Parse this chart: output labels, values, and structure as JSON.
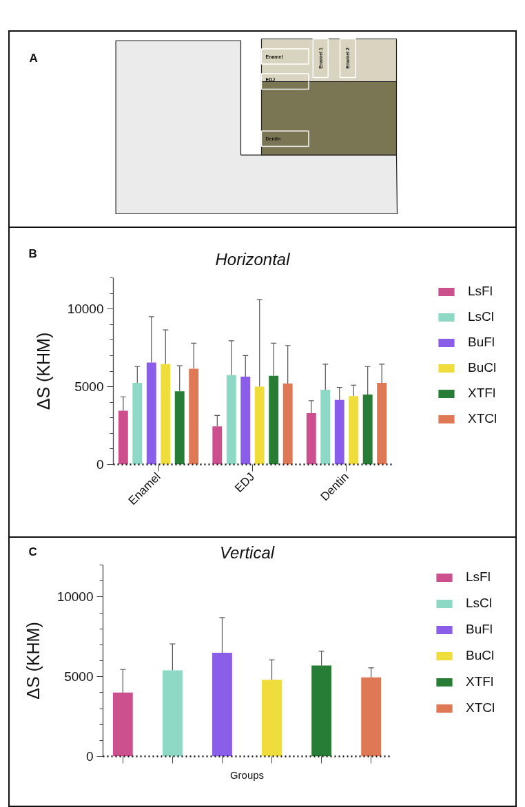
{
  "chart_data": [
    {
      "type": "other",
      "annotations": [
        "A",
        "Enamel",
        "EDJ",
        "Dentin",
        "Enamel 1",
        "Enamel 2"
      ]
    },
    {
      "type": "bar",
      "title": "Horizontal",
      "ylabel": "ΔS (KHM)",
      "annotations": [
        "B"
      ],
      "categories": [
        "Enamel",
        "EDJ",
        "Dentin"
      ],
      "series": [
        {
          "name": "LsFl",
          "color": "#cc4f8e",
          "values": [
            3450,
            2450,
            3300
          ],
          "errors": [
            [
              3450,
              4350
            ],
            [
              2450,
              3150
            ],
            [
              3300,
              4100
            ]
          ]
        },
        {
          "name": "LsCl",
          "color": "#8ed8c6",
          "values": [
            5250,
            5750,
            4800
          ],
          "errors": [
            [
              5250,
              6300
            ],
            [
              5750,
              7950
            ],
            [
              4800,
              6450
            ]
          ]
        },
        {
          "name": "BuFl",
          "color": "#8a5ee8",
          "values": [
            6550,
            5650,
            4150
          ],
          "errors": [
            [
              6550,
              9500
            ],
            [
              5650,
              7000
            ],
            [
              4150,
              4950
            ]
          ]
        },
        {
          "name": "BuCl",
          "color": "#efdd3c",
          "values": [
            6450,
            5000,
            4400
          ],
          "errors": [
            [
              6450,
              8650
            ],
            [
              5000,
              10600
            ],
            [
              4400,
              5100
            ]
          ]
        },
        {
          "name": "XTFl",
          "color": "#277d35",
          "values": [
            4700,
            5700,
            4500
          ],
          "errors": [
            [
              4700,
              6350
            ],
            [
              5700,
              7800
            ],
            [
              4500,
              6300
            ]
          ]
        },
        {
          "name": "XTCl",
          "color": "#df7855",
          "values": [
            6150,
            5200,
            5250
          ],
          "errors": [
            [
              6150,
              7800
            ],
            [
              5200,
              7650
            ],
            [
              5250,
              6450
            ]
          ]
        }
      ],
      "ylim": [
        0,
        12000
      ],
      "yticks": [
        0,
        {
          "value": 1000,
          "label": null
        },
        {
          "value": 2000,
          "label": null
        },
        {
          "value": 3000,
          "label": null
        },
        {
          "value": 4000,
          "label": null
        },
        5000,
        {
          "value": 6000,
          "label": null
        },
        {
          "value": 7000,
          "label": null
        },
        {
          "value": 8000,
          "label": null
        },
        {
          "value": 9000,
          "label": null
        },
        10000,
        {
          "value": 11000,
          "label": null
        },
        {
          "value": 12000,
          "label": null
        }
      ],
      "legend": "right"
    },
    {
      "type": "bar",
      "title": "Vertical",
      "xlabel": "Groups",
      "ylabel": "ΔS (KHM)",
      "annotations": [
        "C"
      ],
      "categories": [
        null,
        null,
        null,
        null,
        null,
        null
      ],
      "stacked": true,
      "series": [
        {
          "name": "LsFl",
          "color": "#cc4f8e",
          "values": [
            4000,
            null,
            null,
            null,
            null,
            null
          ],
          "errors": [
            [
              4000,
              5450
            ],
            null,
            null,
            null,
            null,
            null
          ]
        },
        {
          "name": "LsCl",
          "color": "#8ed8c6",
          "values": [
            null,
            5400,
            null,
            null,
            null,
            null
          ],
          "errors": [
            null,
            [
              5400,
              7050
            ],
            null,
            null,
            null,
            null
          ]
        },
        {
          "name": "BuFl",
          "color": "#8a5ee8",
          "values": [
            null,
            null,
            6500,
            null,
            null,
            null
          ],
          "errors": [
            null,
            null,
            [
              6500,
              8700
            ],
            null,
            null,
            null
          ]
        },
        {
          "name": "BuCl",
          "color": "#efdd3c",
          "values": [
            null,
            null,
            null,
            4800,
            null,
            null
          ],
          "errors": [
            null,
            null,
            null,
            [
              4800,
              6050
            ],
            null,
            null
          ]
        },
        {
          "name": "XTFl",
          "color": "#277d35",
          "values": [
            null,
            null,
            null,
            null,
            5700,
            null
          ],
          "errors": [
            null,
            null,
            null,
            null,
            [
              5700,
              6600
            ],
            null
          ]
        },
        {
          "name": "XTCl",
          "color": "#df7855",
          "values": [
            null,
            null,
            null,
            null,
            null,
            4950
          ],
          "errors": [
            null,
            null,
            null,
            null,
            null,
            [
              4950,
              5550
            ]
          ]
        }
      ],
      "ylim": [
        0,
        12000
      ],
      "yticks": [
        0,
        {
          "value": 1000,
          "label": null
        },
        {
          "value": 2000,
          "label": null
        },
        {
          "value": 3000,
          "label": null
        },
        {
          "value": 4000,
          "label": null
        },
        5000,
        {
          "value": 6000,
          "label": null
        },
        {
          "value": 7000,
          "label": null
        },
        {
          "value": 8000,
          "label": null
        },
        {
          "value": 9000,
          "label": null
        },
        10000,
        {
          "value": 11000,
          "label": null
        },
        {
          "value": 12000,
          "label": null
        }
      ],
      "legend": "right"
    }
  ]
}
